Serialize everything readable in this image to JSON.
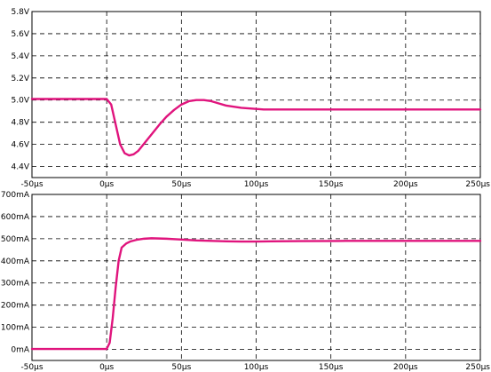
{
  "chart_data": [
    {
      "type": "line",
      "xlim": [
        -50,
        250
      ],
      "ylim": [
        4.3,
        5.8
      ],
      "grid": true,
      "x_ticks": [
        -50,
        0,
        50,
        100,
        150,
        200,
        250
      ],
      "x_tick_labels": [
        "-50µs",
        "0µs",
        "50µs",
        "100µs",
        "150µs",
        "200µs",
        "250µs"
      ],
      "y_ticks": [
        4.4,
        4.6,
        4.8,
        5.0,
        5.2,
        5.4,
        5.6,
        5.8
      ],
      "y_tick_labels": [
        "4.4V",
        "4.6V",
        "4.8V",
        "5.0V",
        "5.2V",
        "5.4V",
        "5.6V",
        "5.8V"
      ],
      "series": [
        {
          "color": "#e0147d",
          "x": [
            -50,
            -5,
            0,
            3,
            6,
            9,
            12,
            15,
            18,
            21,
            24,
            27,
            30,
            33,
            36,
            40,
            45,
            50,
            55,
            60,
            65,
            70,
            75,
            80,
            85,
            90,
            95,
            100,
            105,
            110,
            120,
            150,
            200,
            250
          ],
          "y": [
            5.01,
            5.01,
            5.01,
            4.96,
            4.78,
            4.6,
            4.52,
            4.5,
            4.51,
            4.54,
            4.59,
            4.64,
            4.69,
            4.74,
            4.79,
            4.85,
            4.91,
            4.96,
            4.99,
            5.0,
            5.0,
            4.99,
            4.97,
            4.95,
            4.94,
            4.93,
            4.925,
            4.92,
            4.915,
            4.915,
            4.915,
            4.915,
            4.915,
            4.915
          ]
        }
      ]
    },
    {
      "type": "line",
      "xlim": [
        -50,
        250
      ],
      "ylim": [
        -50,
        700
      ],
      "grid": true,
      "x_ticks": [
        -50,
        0,
        50,
        100,
        150,
        200,
        250
      ],
      "x_tick_labels": [
        "-50µs",
        "0µs",
        "50µs",
        "100µs",
        "150µs",
        "200µs",
        "250µs"
      ],
      "y_ticks": [
        0,
        100,
        200,
        300,
        400,
        500,
        600,
        700
      ],
      "y_tick_labels": [
        "0mA",
        "100mA",
        "200mA",
        "300mA",
        "400mA",
        "500mA",
        "600mA",
        "700mA"
      ],
      "series": [
        {
          "color": "#e0147d",
          "x": [
            -50,
            -5,
            0,
            2,
            4,
            6,
            8,
            10,
            13,
            16,
            20,
            25,
            30,
            40,
            50,
            60,
            70,
            80,
            90,
            100,
            110,
            130,
            160,
            200,
            250
          ],
          "y": [
            2,
            2,
            2,
            30,
            140,
            280,
            400,
            460,
            478,
            488,
            495,
            500,
            502,
            500,
            496,
            492,
            490,
            488,
            487,
            487,
            488,
            489,
            490,
            490,
            490
          ]
        }
      ]
    }
  ]
}
